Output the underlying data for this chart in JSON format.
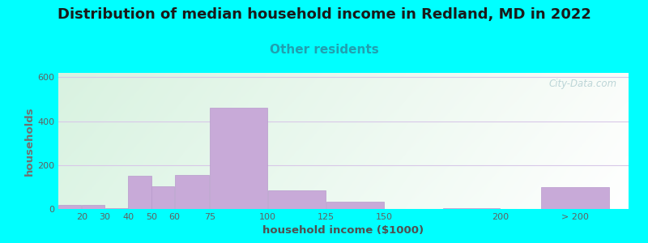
{
  "title": "Distribution of median household income in Redland, MD in 2022",
  "subtitle": "Other residents",
  "xlabel": "household income ($1000)",
  "ylabel": "households",
  "background_color": "#00ffff",
  "plot_bg_top_left": "#d4f0e8",
  "plot_bg_top_right": "#e8f8f5",
  "plot_bg_bottom_left": "#e0f5e0",
  "plot_bg_bottom_right": "#f5fff8",
  "bar_color": "#c8aad8",
  "bar_edge_color": "#b89acc",
  "watermark": "City-Data.com",
  "positions": [
    15,
    25,
    35,
    45,
    55,
    67.5,
    87.5,
    112.5,
    137.5,
    187.5,
    232
  ],
  "widths": [
    10,
    10,
    10,
    10,
    10,
    15,
    25,
    25,
    25,
    25,
    30
  ],
  "values": [
    18,
    20,
    4,
    150,
    105,
    155,
    460,
    85,
    35,
    5,
    100
  ],
  "ylim": [
    0,
    620
  ],
  "yticks": [
    0,
    200,
    400,
    600
  ],
  "xtick_positions": [
    20,
    30,
    40,
    50,
    60,
    75,
    100,
    125,
    150,
    200,
    232
  ],
  "xtick_labels": [
    "20",
    "30",
    "40",
    "50",
    "60",
    "75",
    "100",
    "125",
    "150",
    "200",
    "> 200"
  ],
  "xlim": [
    10,
    255
  ],
  "grid_color": "#d8c8e8",
  "title_fontsize": 13,
  "subtitle_fontsize": 11,
  "title_color": "#1a1a1a",
  "subtitle_color": "#20a0b0",
  "axis_label_color": "#505050",
  "tick_color": "#606060",
  "ylabel_color": "#707070"
}
